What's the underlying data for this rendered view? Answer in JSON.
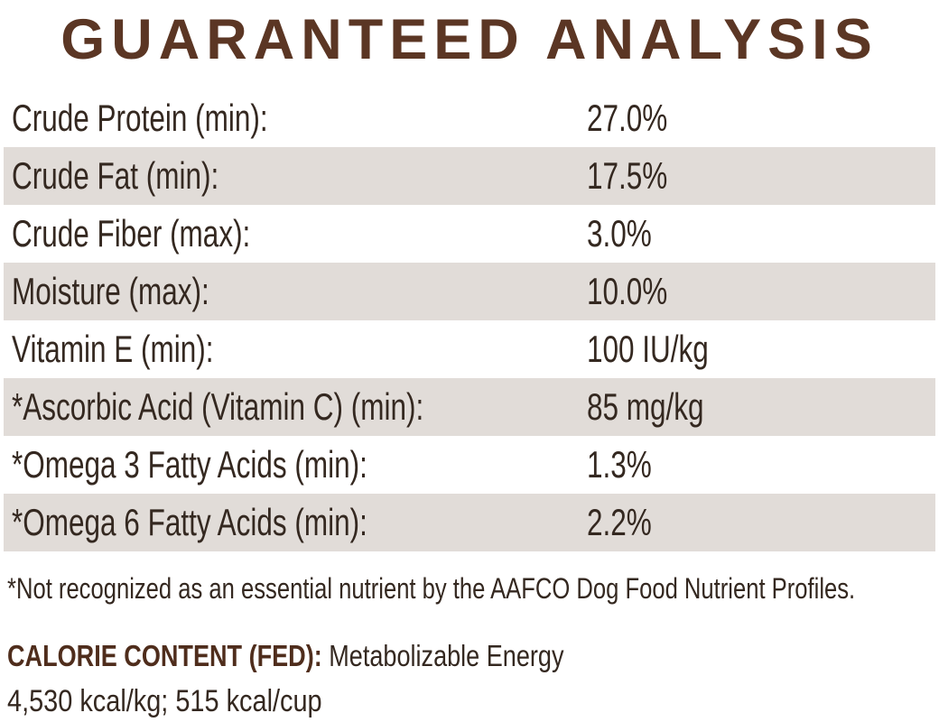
{
  "page": {
    "title": "GUARANTEED ANALYSIS"
  },
  "analysis": {
    "rows": [
      {
        "label": "Crude Protein (min):",
        "value": "27.0%"
      },
      {
        "label": "Crude Fat (min):",
        "value": "17.5%"
      },
      {
        "label": "Crude Fiber (max):",
        "value": "3.0%"
      },
      {
        "label": "Moisture (max):",
        "value": "10.0%"
      },
      {
        "label": "Vitamin E (min):",
        "value": "100 IU/kg"
      },
      {
        "label": "*Ascorbic Acid (Vitamin C) (min):",
        "value": "85 mg/kg"
      },
      {
        "label": "*Omega 3 Fatty Acids (min):",
        "value": "1.3%"
      },
      {
        "label": "*Omega 6 Fatty Acids (min):",
        "value": "2.2%"
      }
    ],
    "footnote": "*Not recognized as an essential nutrient by the AAFCO Dog Food Nutrient Profiles."
  },
  "calorie_content": {
    "heading": "CALORIE CONTENT (FED):",
    "description": "Metabolizable Energy",
    "values": "4,530 kcal/kg; 515 kcal/cup"
  },
  "colors": {
    "title_brown": "#5b3624",
    "heading_brown": "#4f2d1c",
    "body_text": "#342820",
    "row_alt_background": "#e1dcd8",
    "page_background": "#ffffff"
  }
}
